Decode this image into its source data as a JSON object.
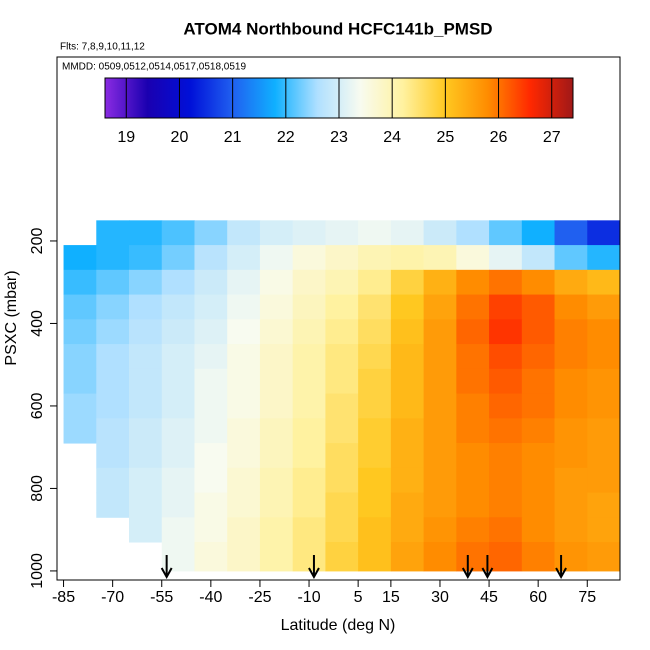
{
  "chart_data": {
    "type": "heatmap",
    "title": "ATOM4 Northbound HCFC141b_PMSD",
    "flights": "Flts: 7,8,9,10,11,12",
    "dates": "MMDD: 0509,0512,0514,0517,0518,0519",
    "xlabel": "Latitude (deg N)",
    "ylabel": "PSXC (mbar)",
    "xlim": [
      -87,
      85
    ],
    "xticks": [
      -85,
      -70,
      -55,
      -40,
      -25,
      -10,
      5,
      15,
      30,
      45,
      60,
      75
    ],
    "ylim": [
      1022,
      -246
    ],
    "yticks": [
      200,
      400,
      600,
      800,
      1000
    ],
    "lat_bins": [
      -85,
      -75,
      -65,
      -55,
      -45,
      -35,
      -25,
      -15,
      -5,
      5,
      15,
      25,
      35,
      45,
      55,
      65,
      75,
      85
    ],
    "pressure_bins": [
      150,
      210,
      270,
      330,
      390,
      450,
      510,
      570,
      630,
      690,
      750,
      810,
      870,
      930,
      1000
    ],
    "values": [
      [
        null,
        21.9,
        21.9,
        22.1,
        22.4,
        22.8,
        23.0,
        23.1,
        23.2,
        23.3,
        23.2,
        22.9,
        22.6,
        22.2,
        21.8,
        21.0,
        20.5
      ],
      [
        21.8,
        21.9,
        22.0,
        22.3,
        22.7,
        23.0,
        23.3,
        23.6,
        23.8,
        24.0,
        24.1,
        24.0,
        23.6,
        23.2,
        22.8,
        22.2,
        21.9
      ],
      [
        22.0,
        22.2,
        22.4,
        22.6,
        22.9,
        23.2,
        23.5,
        23.8,
        24.0,
        24.3,
        24.8,
        25.3,
        25.8,
        26.0,
        25.8,
        25.4,
        25.2
      ],
      [
        22.2,
        22.4,
        22.6,
        22.8,
        23.0,
        23.3,
        23.6,
        23.9,
        24.2,
        24.5,
        25.0,
        25.5,
        26.0,
        26.4,
        26.2,
        25.8,
        25.6
      ],
      [
        22.3,
        22.5,
        22.7,
        22.9,
        23.1,
        23.4,
        23.7,
        24.0,
        24.3,
        24.6,
        25.1,
        25.6,
        26.1,
        26.5,
        26.2,
        25.9,
        25.8
      ],
      [
        22.4,
        22.6,
        22.8,
        23.0,
        23.2,
        23.5,
        23.8,
        24.1,
        24.4,
        24.7,
        25.2,
        25.6,
        26.0,
        26.3,
        26.1,
        25.9,
        25.8
      ],
      [
        22.4,
        22.6,
        22.8,
        23.0,
        23.3,
        23.5,
        23.8,
        24.1,
        24.4,
        24.8,
        25.2,
        25.6,
        26.0,
        26.2,
        26.0,
        25.8,
        25.7
      ],
      [
        22.5,
        22.6,
        22.8,
        23.0,
        23.3,
        23.5,
        23.8,
        24.1,
        24.5,
        24.8,
        25.2,
        25.6,
        25.9,
        26.1,
        26.0,
        25.8,
        25.7
      ],
      [
        22.5,
        22.7,
        22.9,
        23.1,
        23.3,
        23.6,
        23.9,
        24.2,
        24.5,
        24.9,
        25.3,
        25.6,
        25.9,
        26.0,
        25.9,
        25.7,
        25.6
      ],
      [
        null,
        22.7,
        22.9,
        23.1,
        23.4,
        23.6,
        23.9,
        24.2,
        24.6,
        24.9,
        25.3,
        25.6,
        25.8,
        25.9,
        25.8,
        25.7,
        25.6
      ],
      [
        null,
        22.8,
        23.0,
        23.2,
        23.4,
        23.7,
        24.0,
        24.3,
        24.6,
        25.0,
        25.3,
        25.6,
        25.8,
        25.9,
        25.8,
        25.6,
        25.6
      ],
      [
        null,
        22.8,
        23.0,
        23.2,
        23.5,
        23.7,
        24.0,
        24.3,
        24.7,
        25.0,
        25.4,
        25.6,
        25.8,
        25.9,
        25.8,
        25.6,
        25.5
      ],
      [
        null,
        null,
        23.0,
        23.3,
        23.5,
        23.8,
        24.1,
        24.4,
        24.7,
        25.1,
        25.4,
        25.7,
        25.9,
        26.0,
        25.8,
        25.6,
        25.5
      ],
      [
        null,
        null,
        null,
        23.3,
        23.6,
        23.8,
        24.1,
        24.4,
        24.8,
        25.1,
        25.5,
        25.8,
        26.0,
        26.1,
        25.9,
        25.7,
        25.6
      ]
    ],
    "arrows": [
      -53.5,
      -8.5,
      38.5,
      44.5,
      67
    ],
    "colorbar": {
      "lim": [
        18.6,
        27.4
      ],
      "ticks": [
        19,
        20,
        21,
        22,
        23,
        24,
        25,
        26,
        27
      ],
      "colors": [
        "#8a2be2",
        "#1a00b0",
        "#0010d8",
        "#2060f0",
        "#10b0ff",
        "#b0e0ff",
        "#f8fbf0",
        "#fff2a0",
        "#ffc820",
        "#ff8c00",
        "#ff2800",
        "#a01818"
      ]
    }
  }
}
